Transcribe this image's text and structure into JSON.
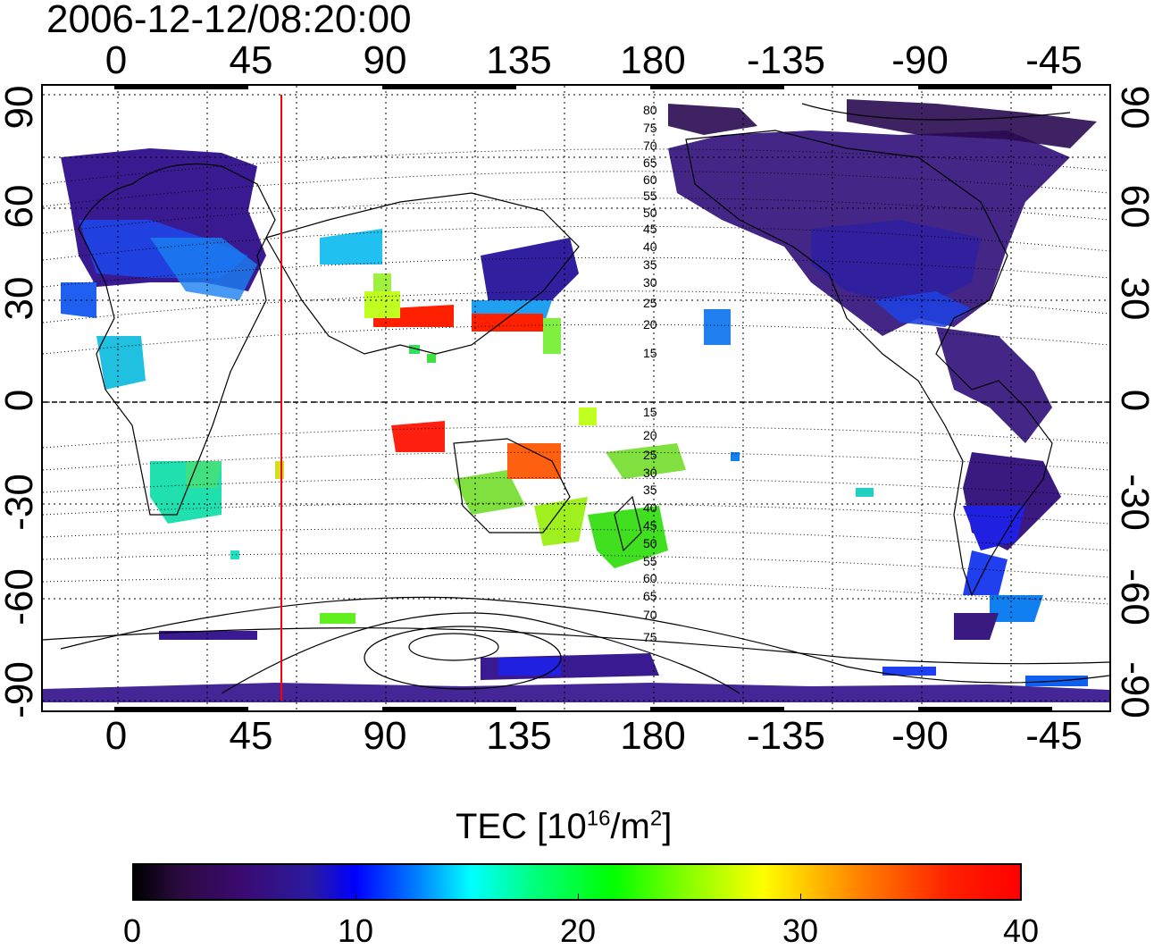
{
  "title": "2006-12-12/08:20:00",
  "lon_labels": [
    "0",
    "45",
    "90",
    "135",
    "180",
    "-135",
    "-90",
    "-45"
  ],
  "lat_labels": [
    "90",
    "60",
    "30",
    "0",
    "-30",
    "-60",
    "-90"
  ],
  "contour_labels_north": [
    "80",
    "75",
    "70",
    "65",
    "60",
    "55",
    "50",
    "45",
    "40",
    "35",
    "30",
    "25",
    "20",
    "15"
  ],
  "contour_labels_south": [
    "15",
    "20",
    "25",
    "30",
    "35",
    "40",
    "45",
    "50",
    "55",
    "60",
    "65",
    "70",
    "75"
  ],
  "colorbar": {
    "title_main": "TEC  [10",
    "title_sup1": "16",
    "title_mid": "/m",
    "title_sup2": "2",
    "title_end": "]",
    "ticks": [
      "0",
      "10",
      "20",
      "30",
      "40"
    ],
    "min": 0,
    "max": 40
  },
  "colors": {
    "terminator_line": "#ff0000",
    "coastline": "#000000",
    "grid": "#000000"
  }
}
